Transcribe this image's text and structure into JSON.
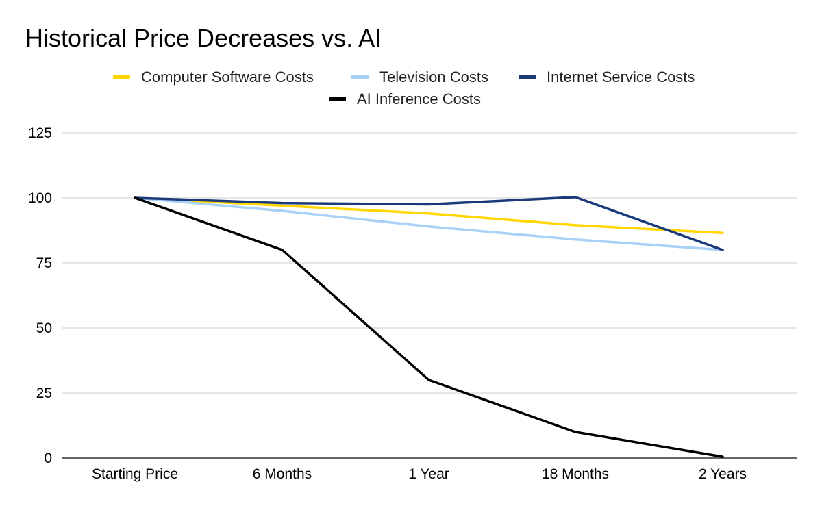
{
  "chart_data": {
    "type": "line",
    "title": "Historical Price Decreases vs. AI",
    "xlabel": "",
    "ylabel": "",
    "categories": [
      "Starting Price",
      "6 Months",
      "1 Year",
      "18 Months",
      "2 Years"
    ],
    "ylim": [
      0,
      125
    ],
    "yticks": [
      0,
      25,
      50,
      75,
      100,
      125
    ],
    "grid": true,
    "legend_position": "top",
    "series": [
      {
        "name": "Computer Software Costs",
        "color": "#FFD600",
        "values": [
          100,
          97,
          94,
          89.5,
          86.5
        ]
      },
      {
        "name": "Television Costs",
        "color": "#A8D1F8",
        "values": [
          100,
          95,
          89,
          84,
          80
        ]
      },
      {
        "name": "Internet Service Costs",
        "color": "#1B3A7A",
        "values": [
          100,
          98,
          97.5,
          100.3,
          80
        ]
      },
      {
        "name": "AI Inference Costs",
        "color": "#000000",
        "values": [
          100,
          80,
          30,
          10,
          0.5
        ]
      }
    ]
  }
}
